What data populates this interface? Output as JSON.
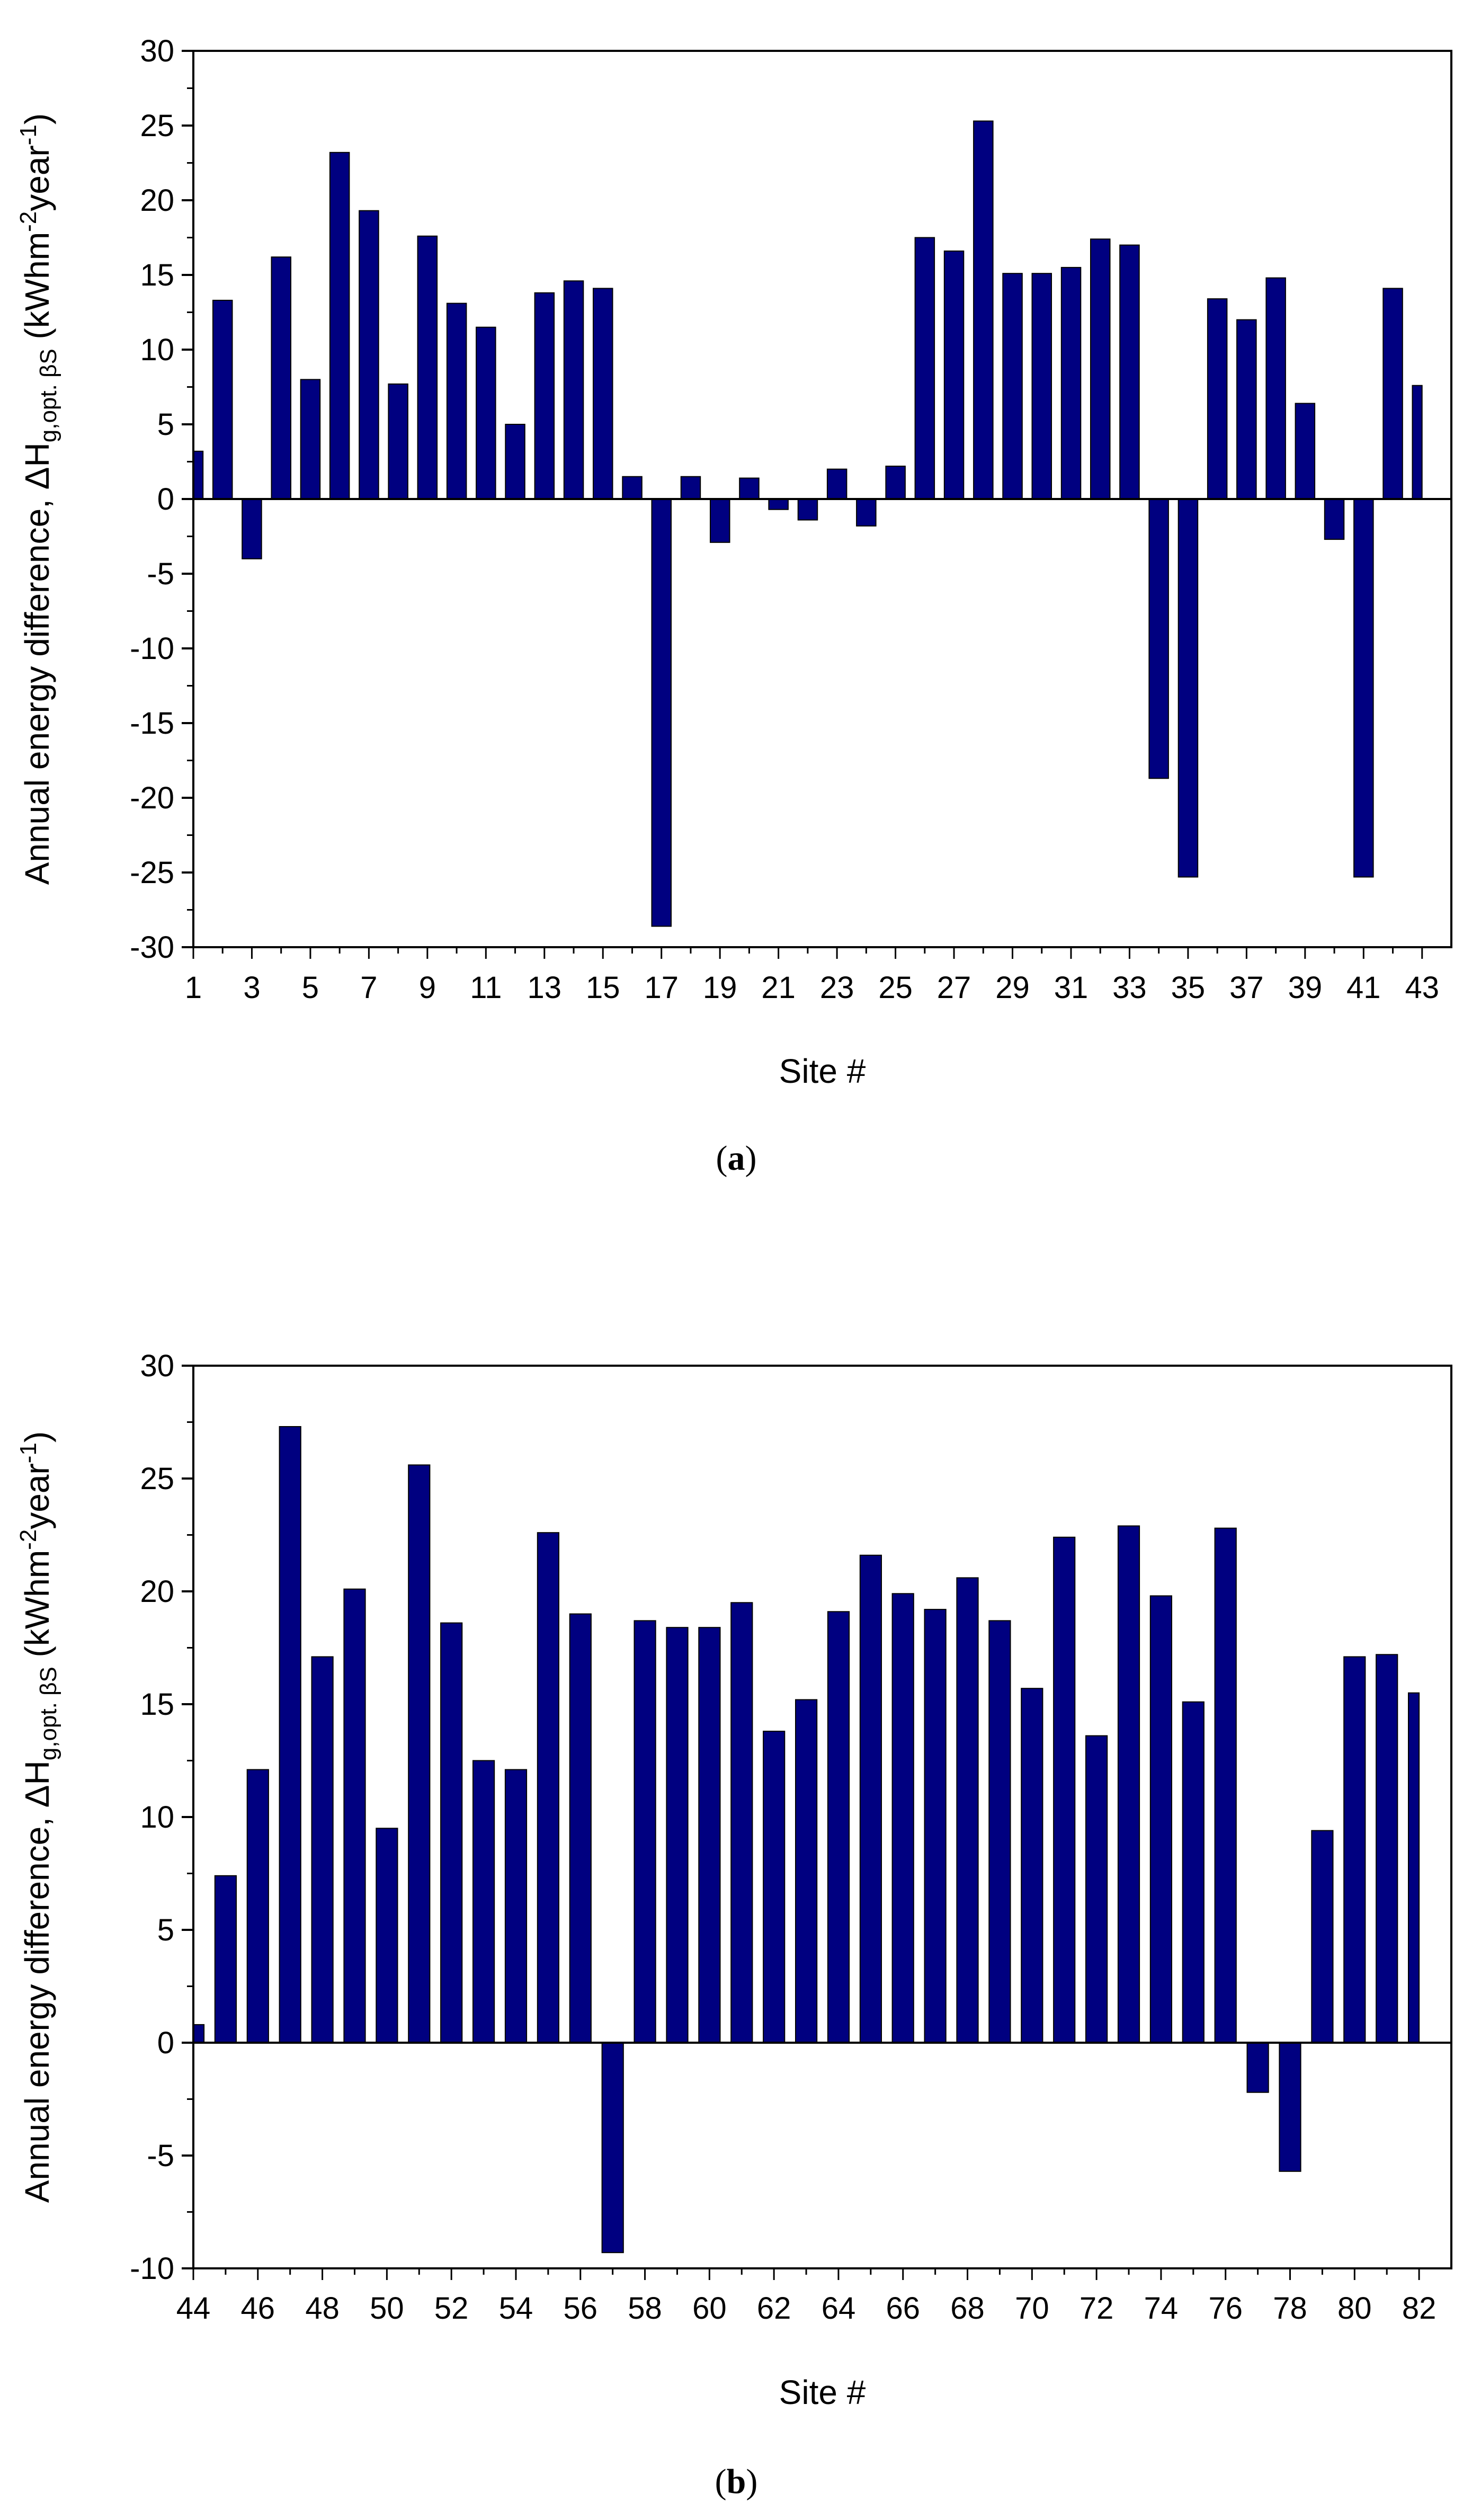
{
  "colors": {
    "bar": "#000080",
    "axis": "#000000",
    "background": "#ffffff"
  },
  "chart_data": [
    {
      "type": "bar",
      "panel_label": {
        "open": "(",
        "letter": "a",
        "close": ")"
      },
      "xlabel": "Site #",
      "ylabel": {
        "prefix": "Annual energy difference, ΔH",
        "sub": "g,opt. βS",
        "mid": " (kWhm",
        "sup1": "-2",
        "mid2": "year",
        "sup2": "-1",
        "end": ")"
      },
      "ylim": [
        -30,
        30
      ],
      "yticks": [
        "-30",
        "-25",
        "-20",
        "-15",
        "-10",
        "-5",
        "0",
        "5",
        "10",
        "15",
        "20",
        "25",
        "30"
      ],
      "x_tick_labels": [
        "1",
        "3",
        "5",
        "7",
        "9",
        "11",
        "13",
        "15",
        "17",
        "19",
        "21",
        "23",
        "25",
        "27",
        "29",
        "31",
        "33",
        "35",
        "37",
        "39",
        "41",
        "43"
      ],
      "categories": [
        1,
        2,
        3,
        4,
        5,
        6,
        7,
        8,
        9,
        10,
        11,
        12,
        13,
        14,
        15,
        16,
        17,
        18,
        19,
        20,
        21,
        22,
        23,
        24,
        25,
        26,
        27,
        28,
        29,
        30,
        31,
        32,
        33,
        34,
        35,
        36,
        37,
        38,
        39,
        40,
        41,
        42,
        43
      ],
      "values": [
        3.2,
        13.3,
        -4.0,
        16.2,
        8.0,
        23.2,
        19.3,
        7.7,
        17.6,
        13.1,
        11.5,
        5.0,
        13.8,
        14.6,
        14.1,
        1.5,
        -28.6,
        1.5,
        -2.9,
        1.4,
        -0.7,
        -1.4,
        2.0,
        -1.8,
        2.2,
        17.5,
        16.6,
        25.3,
        15.1,
        15.1,
        15.5,
        17.4,
        17.0,
        -18.7,
        -25.3,
        13.4,
        12.0,
        14.8,
        6.4,
        -2.7,
        -25.3,
        14.1,
        7.6
      ]
    },
    {
      "type": "bar",
      "panel_label": {
        "open": "(",
        "letter": "b",
        "close": ")"
      },
      "xlabel": "Site #",
      "ylabel": {
        "prefix": "Annual energy difference, ΔH",
        "sub": "g,opt. βS",
        "mid": " (kWhm",
        "sup1": "-2",
        "mid2": "year",
        "sup2": "-1",
        "end": ")"
      },
      "ylim": [
        -10,
        30
      ],
      "yticks": [
        "-10",
        "-5",
        "0",
        "5",
        "10",
        "15",
        "20",
        "25",
        "30"
      ],
      "x_tick_labels": [
        "44",
        "46",
        "48",
        "50",
        "52",
        "54",
        "56",
        "58",
        "60",
        "62",
        "64",
        "66",
        "68",
        "70",
        "72",
        "74",
        "76",
        "78",
        "80",
        "82"
      ],
      "categories": [
        44,
        45,
        46,
        47,
        48,
        49,
        50,
        51,
        52,
        53,
        54,
        55,
        56,
        57,
        58,
        59,
        60,
        61,
        62,
        63,
        64,
        65,
        66,
        67,
        68,
        69,
        70,
        71,
        72,
        73,
        74,
        75,
        76,
        77,
        78,
        79,
        80,
        81,
        82
      ],
      "values": [
        0.8,
        7.4,
        12.1,
        27.3,
        17.1,
        20.1,
        9.5,
        25.6,
        18.6,
        12.5,
        12.1,
        22.6,
        19.0,
        -9.3,
        18.7,
        18.4,
        18.4,
        19.5,
        13.8,
        15.2,
        19.1,
        21.6,
        19.9,
        19.2,
        20.6,
        18.7,
        15.7,
        22.4,
        13.6,
        22.9,
        19.8,
        15.1,
        22.8,
        -2.2,
        -5.7,
        9.4,
        17.1,
        17.2,
        15.5
      ]
    }
  ]
}
